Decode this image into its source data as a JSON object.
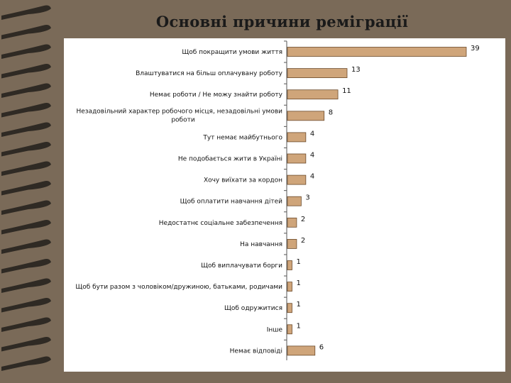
{
  "chart_data": {
    "type": "bar",
    "orientation": "horizontal",
    "title": "Основні причини реміграції",
    "xlabel": "",
    "ylabel": "",
    "grid": false,
    "legend": "none",
    "xlim": [
      0,
      39
    ],
    "categories": [
      [
        "Щоб покращити умови життя"
      ],
      [
        "Влаштуватися на більш оплачувану роботу"
      ],
      [
        "Немає роботи / Не можу знайти роботу"
      ],
      [
        "Незадовільний характер робочого місця, незадовільні умови",
        "роботи"
      ],
      [
        "Тут немає майбутнього"
      ],
      [
        "Не подобається жити в Україні"
      ],
      [
        "Хочу виїхати за кордон"
      ],
      [
        "Щоб оплатити навчання дітей"
      ],
      [
        "Недостатнє соціальне забезпечення"
      ],
      [
        "На навчання"
      ],
      [
        "Щоб виплачувати борги"
      ],
      [
        "Щоб бути разом з чоловіком/дружиною, батьками, родичами"
      ],
      [
        "Щоб одружитися"
      ],
      [
        "Інше"
      ],
      [
        "Немає відповіді"
      ]
    ],
    "values": [
      39,
      13,
      11,
      8,
      4,
      4,
      4,
      3,
      2,
      2,
      1,
      1,
      1,
      1,
      6
    ],
    "colors": {
      "bar_fill": "#cfa57a",
      "bar_stroke": "#6b4a2a",
      "plot_bg": "#ffffff",
      "axis": "#555555",
      "background": "#7a6a58",
      "border_swirl": "#2f2a24"
    }
  }
}
